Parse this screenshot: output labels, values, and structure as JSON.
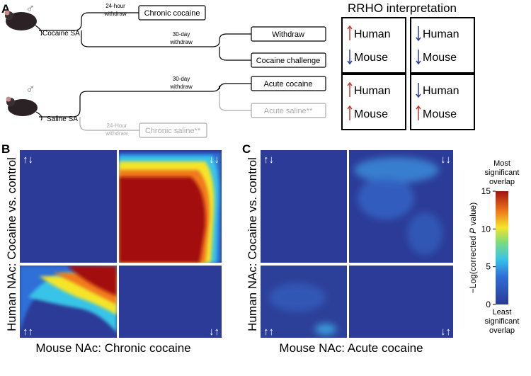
{
  "panel_a": {
    "label": "A",
    "cocaine": {
      "sex": "♂",
      "sa": "Cocaine SA",
      "short_withdraw": [
        "24-hour",
        "withdraw"
      ],
      "short_box": "Chronic cocaine",
      "long_withdraw": [
        "30-day",
        "withdraw"
      ],
      "box_1": "Withdraw",
      "box_2": "Cocaine challenge"
    },
    "saline": {
      "sex": "♂",
      "sa": "Saline SA",
      "long_withdraw": [
        "30-day",
        "withdraw"
      ],
      "box_1": "Acute cocaine",
      "box_2": "Acute saline**",
      "short_withdraw": [
        "24-Hour",
        "withdraw"
      ],
      "short_box": "Chronic saline**"
    },
    "rrho": {
      "title": "RRHO interpretation",
      "quadrants": [
        {
          "top": "Human",
          "bottom": "Mouse"
        },
        {
          "top": "Human",
          "bottom": "Mouse"
        },
        {
          "top": "Human",
          "bottom": "Mouse"
        },
        {
          "top": "Human",
          "bottom": "Mouse"
        }
      ]
    }
  },
  "panel_b": {
    "label": "B",
    "y_label": "Human NAc: Cocaine vs. control",
    "x_label": "Mouse NAc: Chronic cocaine",
    "corners": [
      "↑↓",
      "↓↓",
      "↑↑",
      "↓↑"
    ]
  },
  "panel_c": {
    "label": "C",
    "y_label": "Human NAc: Cocaine vs. control",
    "x_label": "Mouse NAc: Acute cocaine",
    "corners": [
      "↑↓",
      "↓↓",
      "↑↑",
      "↓↑"
    ]
  },
  "colorbar": {
    "top_label": [
      "Most",
      "significant",
      "overlap"
    ],
    "title_prefix": "−Log(corrected ",
    "title_italic": "P",
    "title_suffix": " value)",
    "bottom_label": [
      "Least",
      "significant",
      "overlap"
    ],
    "lim": [
      0,
      15
    ],
    "ticks": [
      0,
      5,
      10,
      15
    ]
  }
}
